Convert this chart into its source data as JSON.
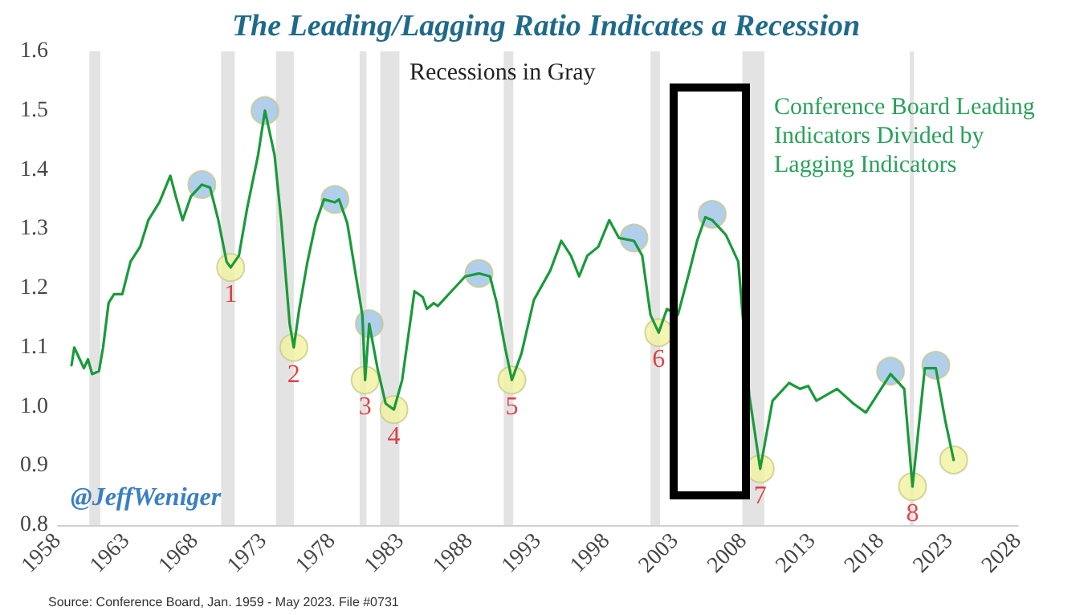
{
  "chart_data": {
    "type": "line",
    "title": "The Leading/Lagging Ratio Indicates a Recession",
    "annotations": [
      "Recessions in Gray",
      "Conference Board Leading Indicators Divided by Lagging Indicators",
      "@JeffWeniger",
      "Source: Conference Board, Jan. 1959 - May 2023. File #0731",
      {
        "text": "1",
        "x": 1970.6,
        "y": 1.235
      },
      {
        "text": "2",
        "x": 1975.2,
        "y": 1.1
      },
      {
        "text": "3",
        "x": 1980.4,
        "y": 1.045
      },
      {
        "text": "4",
        "x": 1982.5,
        "y": 0.995
      },
      {
        "text": "5",
        "x": 1991.1,
        "y": 1.045
      },
      {
        "text": "6",
        "x": 2001.8,
        "y": 1.125
      },
      {
        "text": "7",
        "x": 2009.2,
        "y": 0.895
      },
      {
        "text": "8",
        "x": 2020.3,
        "y": 0.865
      }
    ],
    "series": [
      {
        "color": "#1a9a3a",
        "marker": "none",
        "line_style": "solid",
        "x": [
          1959.0,
          1959.2,
          1959.6,
          1959.9,
          1960.2,
          1960.5,
          1961.0,
          1961.3,
          1961.7,
          1962.1,
          1962.7,
          1963.3,
          1964.0,
          1964.6,
          1965.4,
          1966.2,
          1966.6,
          1967.1,
          1967.7,
          1968.5,
          1969.1,
          1969.7,
          1970.3,
          1970.6,
          1971.2,
          1971.8,
          1972.6,
          1973.1,
          1973.8,
          1974.3,
          1974.9,
          1975.2,
          1975.6,
          1976.2,
          1976.8,
          1977.4,
          1978.2,
          1978.5,
          1979.1,
          1979.7,
          1980.2,
          1980.4,
          1980.7,
          1981.3,
          1981.9,
          1982.5,
          1983.1,
          1984.0,
          1984.6,
          1984.9,
          1985.4,
          1985.7,
          1986.9,
          1987.7,
          1988.7,
          1989.5,
          1990.0,
          1990.6,
          1991.1,
          1991.8,
          1992.7,
          1993.9,
          1994.7,
          1995.4,
          1996.0,
          1996.6,
          1997.4,
          1998.2,
          1998.9,
          2000.0,
          2000.6,
          2001.2,
          2001.8,
          2002.4,
          2003.2,
          2004.0,
          2004.6,
          2005.2,
          2005.7,
          2006.7,
          2007.6,
          2008.4,
          2009.2,
          2010.1,
          2011.3,
          2012.1,
          2012.7,
          2013.3,
          2014.8,
          2016.0,
          2016.9,
          2018.7,
          2019.7,
          2020.3,
          2021.2,
          2022.0,
          2022.7,
          2023.3
        ],
        "values": [
          1.07,
          1.1,
          1.08,
          1.065,
          1.08,
          1.055,
          1.06,
          1.1,
          1.175,
          1.19,
          1.19,
          1.245,
          1.27,
          1.315,
          1.345,
          1.39,
          1.355,
          1.315,
          1.355,
          1.375,
          1.37,
          1.315,
          1.245,
          1.235,
          1.255,
          1.335,
          1.425,
          1.5,
          1.425,
          1.31,
          1.14,
          1.1,
          1.165,
          1.245,
          1.31,
          1.35,
          1.345,
          1.35,
          1.31,
          1.225,
          1.155,
          1.045,
          1.14,
          1.065,
          1.005,
          0.995,
          1.045,
          1.195,
          1.185,
          1.165,
          1.175,
          1.17,
          1.2,
          1.22,
          1.225,
          1.22,
          1.175,
          1.1,
          1.045,
          1.09,
          1.18,
          1.23,
          1.28,
          1.255,
          1.22,
          1.255,
          1.27,
          1.315,
          1.285,
          1.28,
          1.255,
          1.155,
          1.125,
          1.165,
          1.155,
          1.225,
          1.28,
          1.32,
          1.315,
          1.29,
          1.245,
          1.02,
          0.895,
          1.01,
          1.04,
          1.03,
          1.035,
          1.01,
          1.03,
          1.005,
          0.99,
          1.055,
          1.03,
          0.865,
          1.065,
          1.065,
          0.975,
          0.91
        ]
      },
      {
        "type": "scatter",
        "color": "#9dc3e6",
        "marker": "circle",
        "x": [
          1968.5,
          1973.1,
          1978.2,
          1980.7,
          1988.7,
          2000.0,
          2005.7,
          2018.7,
          2022.0
        ],
        "values": [
          1.375,
          1.5,
          1.35,
          1.14,
          1.225,
          1.285,
          1.325,
          1.06,
          1.07
        ]
      },
      {
        "type": "scatter",
        "color": "#f2f2a0",
        "marker": "circle",
        "x": [
          1970.6,
          1975.2,
          1980.4,
          1982.5,
          1991.1,
          2001.8,
          2009.2,
          2020.3,
          2023.3
        ],
        "values": [
          1.235,
          1.1,
          1.045,
          0.995,
          1.045,
          1.125,
          0.895,
          0.865,
          0.91
        ]
      }
    ],
    "bands": [
      {
        "axis": "x",
        "from": 1960.3,
        "to": 1961.1,
        "color": "#e3e3e3"
      },
      {
        "axis": "x",
        "from": 1969.9,
        "to": 1970.9,
        "color": "#e3e3e3"
      },
      {
        "axis": "x",
        "from": 1973.9,
        "to": 1975.2,
        "color": "#e3e3e3"
      },
      {
        "axis": "x",
        "from": 1980.0,
        "to": 1980.5,
        "color": "#e3e3e3"
      },
      {
        "axis": "x",
        "from": 1981.5,
        "to": 1982.9,
        "color": "#e3e3e3"
      },
      {
        "axis": "x",
        "from": 1990.5,
        "to": 1991.2,
        "color": "#e3e3e3"
      },
      {
        "axis": "x",
        "from": 2001.2,
        "to": 2001.9,
        "color": "#e3e3e3"
      },
      {
        "axis": "x",
        "from": 2007.9,
        "to": 2009.5,
        "color": "#e3e3e3"
      },
      {
        "axis": "x",
        "from": 2020.1,
        "to": 2020.4,
        "color": "#e3e3e3"
      }
    ],
    "xlim": [
      1958,
      2028
    ],
    "xticks": [
      1958,
      1963,
      1968,
      1973,
      1978,
      1983,
      1988,
      1993,
      1998,
      2003,
      2008,
      2013,
      2018,
      2023,
      2028
    ],
    "ylim": [
      0.8,
      1.6
    ],
    "yticks": [
      0.8,
      0.9,
      {
        "value": 1,
        "label": "1.0"
      },
      1.1,
      1.2,
      1.3,
      1.4,
      1.5,
      1.6
    ],
    "grid": false
  }
}
